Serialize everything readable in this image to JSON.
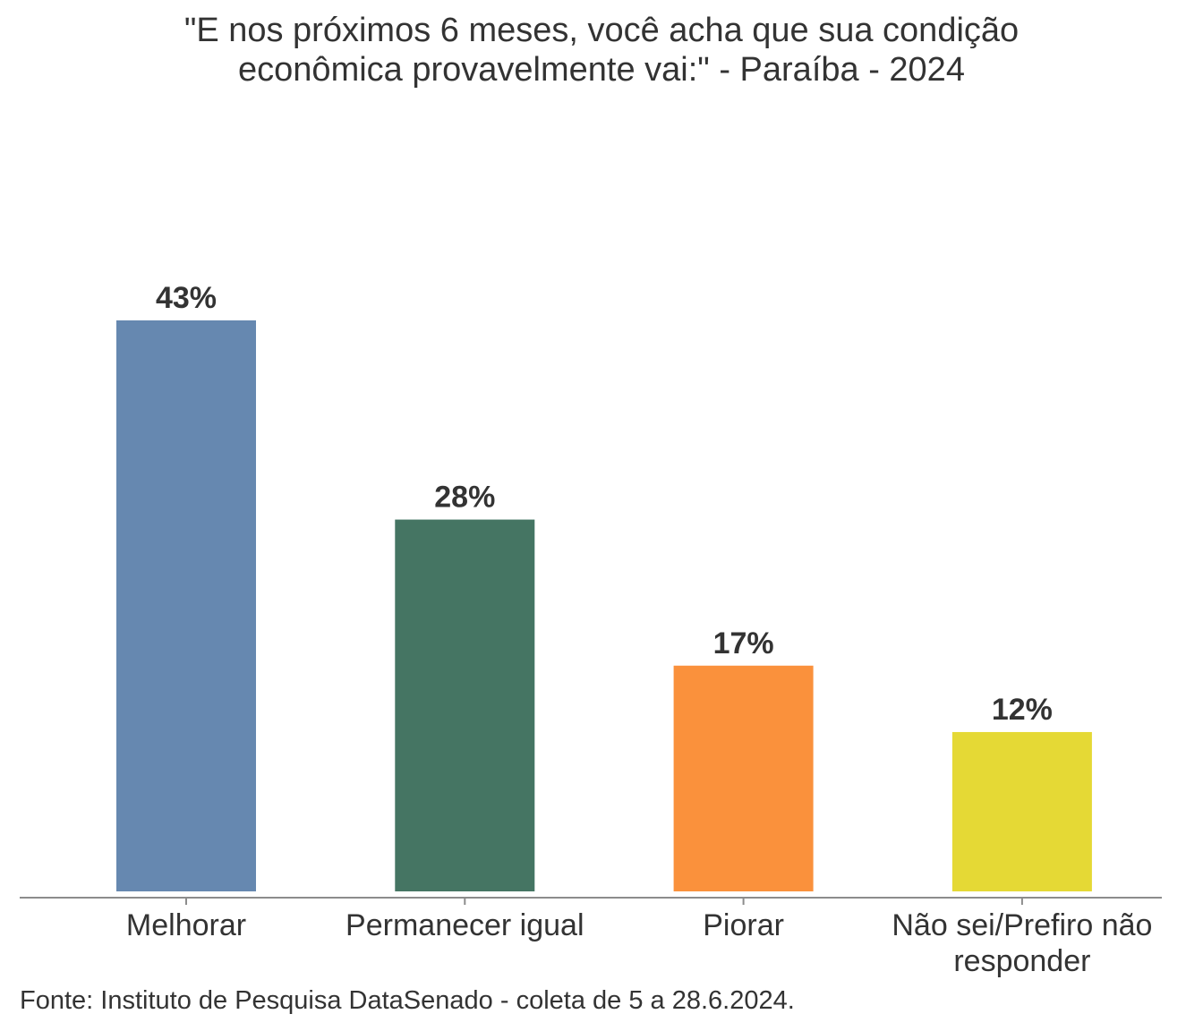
{
  "chart_data": {
    "type": "bar",
    "title_lines": [
      "\"E nos próximos 6 meses, você acha que sua condição",
      "econômica provavelmente vai:\" - Paraíba - 2024"
    ],
    "categories": [
      [
        "Melhorar"
      ],
      [
        "Permanecer igual"
      ],
      [
        "Piorar"
      ],
      [
        "Não sei/Prefiro não",
        "responder"
      ]
    ],
    "values": [
      43,
      28,
      17,
      12
    ],
    "value_labels": [
      "43%",
      "28%",
      "17%",
      "12%"
    ],
    "colors": [
      "#6688b0",
      "#457563",
      "#fa913c",
      "#e5d935"
    ],
    "xlabel": "",
    "ylabel": "",
    "ylim": [
      0,
      43
    ],
    "grid": false,
    "legend": "none"
  },
  "source": "Fonte: Instituto de Pesquisa DataSenado - coleta de 5 a 28.6.2024."
}
